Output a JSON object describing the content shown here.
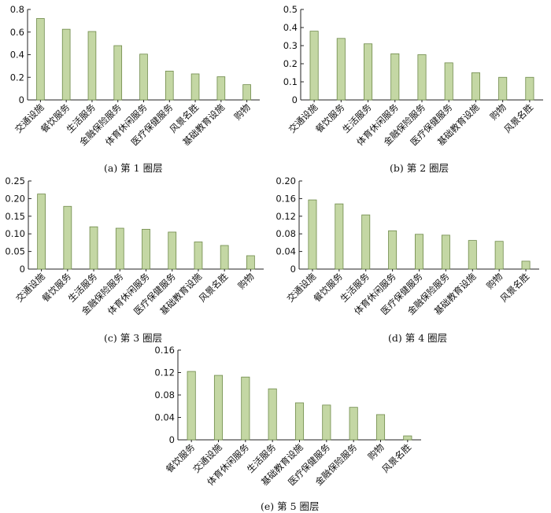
{
  "colors": {
    "bar_fill": "#c4d7a4",
    "bar_stroke": "#6f8a4a",
    "axis": "#222222"
  },
  "chart_data": [
    {
      "type": "bar",
      "caption": "(a) 第 1 圈层",
      "categories": [
        "交通设施",
        "餐饮服务",
        "生活服务",
        "金融保险服务",
        "体育休闲服务",
        "医疗保健服务",
        "风景名胜",
        "基础教育设施",
        "购物"
      ],
      "values": [
        0.72,
        0.625,
        0.605,
        0.48,
        0.405,
        0.255,
        0.23,
        0.205,
        0.135
      ],
      "ylim": [
        0,
        0.8
      ],
      "yticks": [
        0,
        0.2,
        0.4,
        0.6,
        0.8
      ],
      "ytick_labels": [
        "0",
        "0.2",
        "0.4",
        "0.6",
        "0.8"
      ],
      "xlabel": "",
      "ylabel": "",
      "grid": false
    },
    {
      "type": "bar",
      "caption": "(b) 第 2 圈层",
      "categories": [
        "交通设施",
        "餐饮服务",
        "生活服务",
        "体育休闲服务",
        "金融保险服务",
        "医疗保健服务",
        "基础教育设施",
        "购物",
        "风景名胜"
      ],
      "values": [
        0.38,
        0.34,
        0.31,
        0.255,
        0.25,
        0.205,
        0.15,
        0.125,
        0.125
      ],
      "ylim": [
        0,
        0.5
      ],
      "yticks": [
        0,
        0.1,
        0.2,
        0.3,
        0.4,
        0.5
      ],
      "ytick_labels": [
        "0",
        "0.1",
        "0.2",
        "0.3",
        "0.4",
        "0.5"
      ],
      "xlabel": "",
      "ylabel": "",
      "grid": false
    },
    {
      "type": "bar",
      "caption": "(c) 第 3 圈层",
      "categories": [
        "交通设施",
        "餐饮服务",
        "生活服务",
        "金融保险服务",
        "体育休闲服务",
        "医疗保健服务",
        "基础教育设施",
        "风景名胜",
        "购物"
      ],
      "values": [
        0.213,
        0.178,
        0.12,
        0.116,
        0.113,
        0.105,
        0.077,
        0.067,
        0.038
      ],
      "ylim": [
        0,
        0.25
      ],
      "yticks": [
        0,
        0.05,
        0.1,
        0.15,
        0.2,
        0.25
      ],
      "ytick_labels": [
        "0",
        "0.05",
        "0.10",
        "0.15",
        "0.20",
        "0.25"
      ],
      "xlabel": "",
      "ylabel": "",
      "grid": false
    },
    {
      "type": "bar",
      "caption": "(d) 第 4 圈层",
      "categories": [
        "交通设施",
        "餐饮服务",
        "生活服务",
        "体育休闲服务",
        "医疗保健服务",
        "金融保险服务",
        "基础教育设施",
        "购物",
        "风景名胜"
      ],
      "values": [
        0.157,
        0.148,
        0.123,
        0.087,
        0.079,
        0.077,
        0.065,
        0.063,
        0.018
      ],
      "ylim": [
        0,
        0.2
      ],
      "yticks": [
        0,
        0.04,
        0.08,
        0.12,
        0.16,
        0.2
      ],
      "ytick_labels": [
        "0",
        "0.04",
        "0.08",
        "0.12",
        "0.16",
        "0.20"
      ],
      "xlabel": "",
      "ylabel": "",
      "grid": false
    },
    {
      "type": "bar",
      "caption": "(e) 第 5 圈层",
      "categories": [
        "餐饮服务",
        "交通设施",
        "体育休闲服务",
        "生活服务",
        "基础教育设施",
        "医疗保健服务",
        "金融保险服务",
        "购物",
        "风景名胜"
      ],
      "values": [
        0.122,
        0.115,
        0.112,
        0.091,
        0.066,
        0.062,
        0.058,
        0.045,
        0.007
      ],
      "ylim": [
        0,
        0.16
      ],
      "yticks": [
        0,
        0.04,
        0.08,
        0.12,
        0.16
      ],
      "ytick_labels": [
        "0",
        "0.04",
        "0.08",
        "0.12",
        "0.16"
      ],
      "xlabel": "",
      "ylabel": "",
      "grid": false
    }
  ]
}
